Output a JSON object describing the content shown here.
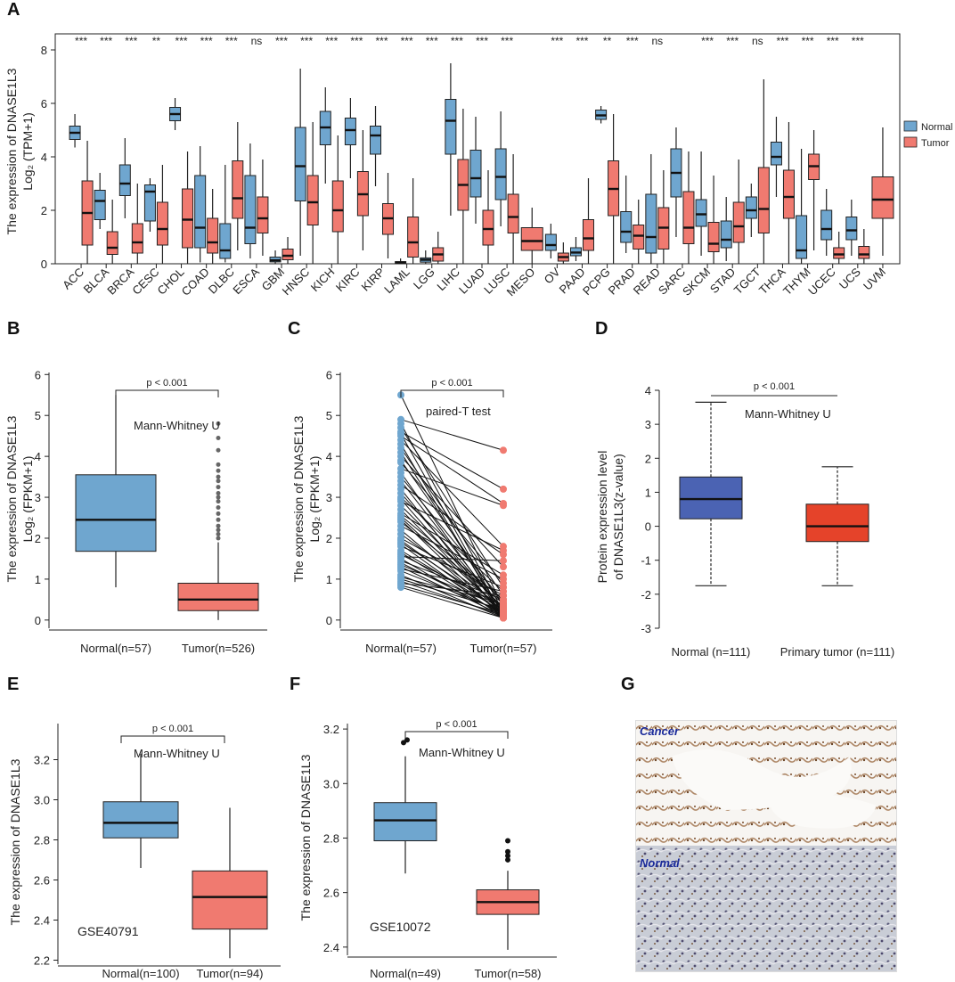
{
  "panel_labels": {
    "A": "A",
    "B": "B",
    "C": "C",
    "D": "D",
    "E": "E",
    "F": "F",
    "G": "G"
  },
  "colors": {
    "normal": "#6fa6cf",
    "tumor": "#f07a70",
    "cptac_normal": "#4b63b3",
    "cptac_tumor": "#e5432a",
    "ihc_label": "#1a2a9a"
  },
  "chart_data": [
    {
      "id": "A",
      "type": "box",
      "ylabel_line1": "The expression of DNASE1L3",
      "ylabel_line2": "Log₂ (TPM+1)",
      "ylim": [
        0,
        8.6
      ],
      "yticks": [
        0,
        2,
        4,
        6,
        8
      ],
      "legend": [
        "Normal",
        "Tumor"
      ],
      "categories": [
        "ACC",
        "BLCA",
        "BRCA",
        "CESC",
        "CHOL",
        "COAD",
        "DLBC",
        "ESCA",
        "GBM",
        "HNSC",
        "KICH",
        "KIRC",
        "KIRP",
        "LAML",
        "LGG",
        "LIHC",
        "LUAD",
        "LUSC",
        "MESO",
        "OV",
        "PAAD",
        "PCPG",
        "PRAD",
        "READ",
        "SARC",
        "SKCM",
        "STAD",
        "TGCT",
        "THCA",
        "THYM",
        "UCEC",
        "UCS",
        "UVM"
      ],
      "significance": [
        "***",
        "***",
        "***",
        "**",
        "***",
        "***",
        "***",
        "ns",
        "***",
        "***",
        "***",
        "***",
        "***",
        "***",
        "***",
        "***",
        "***",
        "***",
        "",
        "***",
        "***",
        "**",
        "***",
        "ns",
        "",
        "***",
        "***",
        "ns",
        "***",
        "***",
        "***",
        "***",
        ""
      ],
      "normal": [
        [
          4.35,
          4.65,
          4.9,
          5.15,
          5.6
        ],
        [
          1.3,
          1.65,
          2.35,
          2.75,
          3.4
        ],
        [
          1.7,
          2.55,
          3.0,
          3.7,
          4.7
        ],
        [
          1.2,
          1.6,
          2.7,
          2.95,
          3.2
        ],
        [
          5.0,
          5.35,
          5.6,
          5.85,
          6.2
        ],
        [
          0.05,
          0.6,
          1.35,
          3.3,
          4.4
        ],
        [
          0.05,
          0.2,
          0.5,
          1.5,
          3.7
        ],
        [
          0.2,
          0.75,
          1.35,
          3.3,
          4.5
        ],
        [
          0.0,
          0.07,
          0.13,
          0.25,
          0.5
        ],
        [
          0.3,
          2.35,
          3.65,
          5.1,
          7.3
        ],
        [
          3.0,
          4.45,
          5.1,
          5.7,
          6.6
        ],
        [
          3.2,
          4.45,
          5.0,
          5.45,
          6.2
        ],
        [
          2.9,
          4.1,
          4.8,
          5.15,
          5.9
        ],
        [
          0.0,
          0.02,
          0.05,
          0.08,
          0.2
        ],
        [
          0.0,
          0.06,
          0.15,
          0.22,
          0.5
        ],
        [
          1.8,
          4.1,
          5.35,
          6.15,
          7.5
        ],
        [
          1.5,
          2.5,
          3.2,
          4.25,
          5.5
        ],
        [
          1.4,
          2.4,
          3.25,
          4.3,
          5.7
        ],
        null,
        [
          0.2,
          0.5,
          0.7,
          1.1,
          1.5
        ],
        [
          0.1,
          0.3,
          0.42,
          0.6,
          1.0
        ],
        [
          5.25,
          5.4,
          5.55,
          5.75,
          5.9
        ],
        [
          0.4,
          0.8,
          1.2,
          1.95,
          3.3
        ],
        [
          0.0,
          0.4,
          1.0,
          2.6,
          4.1
        ],
        [
          1.0,
          2.5,
          3.4,
          4.3,
          5.1
        ],
        [
          0.3,
          1.4,
          1.85,
          2.4,
          4.2
        ],
        [
          0.1,
          0.6,
          0.9,
          1.6,
          2.5
        ],
        [
          1.0,
          1.7,
          2.0,
          2.5,
          3.0
        ],
        [
          2.5,
          3.7,
          4.0,
          4.55,
          5.5
        ],
        [
          0.0,
          0.2,
          0.5,
          1.8,
          4.3
        ],
        [
          0.3,
          0.9,
          1.3,
          2.0,
          2.8
        ],
        [
          0.3,
          0.9,
          1.25,
          1.75,
          2.4
        ],
        null
      ],
      "tumor": [
        [
          0.0,
          0.7,
          1.9,
          3.1,
          4.6
        ],
        [
          0.0,
          0.35,
          0.6,
          1.2,
          2.4
        ],
        [
          0.0,
          0.4,
          0.8,
          1.5,
          3.0
        ],
        [
          0.0,
          0.7,
          1.3,
          2.3,
          3.7
        ],
        [
          0.0,
          0.6,
          1.65,
          2.8,
          4.2
        ],
        [
          0.0,
          0.4,
          0.8,
          1.7,
          2.8
        ],
        [
          0.5,
          1.7,
          2.45,
          3.85,
          5.3
        ],
        [
          0.3,
          1.15,
          1.7,
          2.5,
          3.9
        ],
        [
          0.0,
          0.15,
          0.3,
          0.55,
          1.0
        ],
        [
          0.0,
          1.45,
          2.3,
          3.3,
          5.3
        ],
        [
          0.0,
          1.2,
          2.0,
          3.1,
          4.8
        ],
        [
          0.5,
          1.8,
          2.6,
          3.45,
          5.0
        ],
        [
          0.2,
          1.1,
          1.7,
          2.25,
          3.4
        ],
        [
          0.0,
          0.25,
          0.8,
          1.75,
          3.2
        ],
        [
          0.0,
          0.1,
          0.35,
          0.6,
          1.2
        ],
        [
          0.0,
          2.0,
          2.95,
          3.9,
          5.8
        ],
        [
          0.0,
          0.7,
          1.3,
          2.0,
          3.5
        ],
        [
          0.0,
          1.15,
          1.75,
          2.6,
          4.1
        ],
        [
          0.0,
          0.5,
          0.85,
          1.35,
          2.1
        ],
        [
          0.0,
          0.1,
          0.25,
          0.4,
          0.8
        ],
        [
          0.0,
          0.5,
          0.95,
          1.65,
          3.2
        ],
        [
          0.0,
          1.8,
          2.8,
          3.85,
          5.6
        ],
        [
          0.0,
          0.55,
          1.05,
          1.45,
          2.4
        ],
        [
          0.0,
          0.55,
          1.35,
          2.1,
          3.5
        ],
        [
          0.0,
          0.75,
          1.35,
          2.7,
          4.2
        ],
        [
          0.0,
          0.45,
          0.75,
          1.55,
          3.3
        ],
        [
          0.0,
          0.8,
          1.4,
          2.3,
          3.9
        ],
        [
          0.0,
          1.15,
          2.05,
          3.6,
          6.9
        ],
        [
          0.0,
          1.7,
          2.5,
          3.5,
          5.3
        ],
        [
          0.5,
          3.15,
          3.65,
          4.1,
          5.0
        ],
        [
          0.0,
          0.2,
          0.35,
          0.6,
          1.2
        ],
        [
          0.0,
          0.2,
          0.35,
          0.65,
          1.3
        ],
        [
          0.3,
          1.7,
          2.4,
          3.25,
          5.1
        ]
      ]
    },
    {
      "id": "B",
      "type": "box",
      "ylabel_line1": "The expression of DNASE1L3",
      "ylabel_line2": "Log₂ (FPKM+1)",
      "ylim": [
        -0.2,
        6.05
      ],
      "yticks": [
        0,
        1,
        2,
        3,
        4,
        5,
        6
      ],
      "categories": [
        "Normal(n=57)",
        "Tumor(n=526)"
      ],
      "p_text": "p < 0.001",
      "test": "Mann-Whitney U",
      "boxes": [
        [
          0.8,
          1.68,
          2.45,
          3.55,
          5.5
        ],
        [
          0.0,
          0.23,
          0.5,
          0.9,
          1.9
        ]
      ],
      "outliers_tumor": [
        2.0,
        2.1,
        2.2,
        2.3,
        2.45,
        2.6,
        2.75,
        2.9,
        3.0,
        3.1,
        3.25,
        3.4,
        3.5,
        3.65,
        3.8,
        4.15,
        4.45,
        4.8
      ]
    },
    {
      "id": "C",
      "type": "paired",
      "ylabel_line1": "The expression of DNASE1L3",
      "ylabel_line2": "Log₂ (FPKM+1)",
      "ylim": [
        -0.2,
        6.05
      ],
      "yticks": [
        0,
        1,
        2,
        3,
        4,
        5,
        6
      ],
      "categories": [
        "Normal(n=57)",
        "Tumor(n=57)"
      ],
      "p_text": "p < 0.001",
      "test": "paired-T test",
      "normal_values": [
        5.5,
        4.9,
        4.8,
        4.7,
        4.6,
        4.55,
        4.5,
        4.4,
        4.3,
        4.2,
        4.1,
        4.0,
        3.9,
        3.85,
        3.7,
        3.6,
        3.5,
        3.4,
        3.3,
        3.2,
        3.1,
        3.0,
        2.95,
        2.9,
        2.8,
        2.7,
        2.6,
        2.55,
        2.5,
        2.45,
        2.4,
        2.3,
        2.2,
        2.1,
        2.0,
        1.95,
        1.9,
        1.85,
        1.8,
        1.7,
        1.65,
        1.6,
        1.55,
        1.5,
        1.45,
        1.4,
        1.35,
        1.3,
        1.25,
        1.2,
        1.1,
        1.05,
        1.0,
        0.95,
        0.9,
        0.85,
        0.8
      ],
      "tumor_values": [
        0.3,
        4.15,
        0.2,
        0.8,
        3.2,
        0.1,
        2.85,
        1.8,
        0.05,
        0.6,
        0.15,
        1.3,
        0.35,
        0.9,
        2.8,
        0.1,
        0.45,
        0.2,
        1.6,
        0.05,
        0.25,
        0.7,
        0.1,
        1.7,
        0.3,
        0.15,
        1.1,
        0.5,
        0.2,
        0.05,
        0.4,
        1.0,
        0.1,
        0.3,
        0.6,
        0.15,
        0.25,
        0.05,
        0.8,
        0.2,
        0.1,
        0.35,
        1.45,
        0.05,
        0.5,
        0.15,
        0.3,
        0.1,
        0.7,
        0.2,
        0.05,
        0.4,
        0.25,
        0.1,
        0.6,
        0.15,
        0.05
      ]
    },
    {
      "id": "D",
      "type": "box",
      "ylabel_line1": "Protein expression level",
      "ylabel_line2": "of DNASE1L3(z-value)",
      "ylim": [
        -3,
        4
      ],
      "yticks": [
        -3,
        -2,
        -1,
        0,
        1,
        2,
        3,
        4
      ],
      "categories": [
        "Normal (n=111)",
        "Primary tumor (n=111)"
      ],
      "p_text": "p < 0.001",
      "test": "Mann-Whitney U",
      "boxes": [
        [
          -1.75,
          0.22,
          0.8,
          1.45,
          3.65
        ],
        [
          -1.75,
          -0.45,
          0.0,
          0.65,
          1.75
        ]
      ]
    },
    {
      "id": "E",
      "type": "box",
      "ylabel": "The expression of DNASE1L3",
      "ylim": [
        2.18,
        3.38
      ],
      "yticks": [
        2.2,
        2.4,
        2.6,
        2.8,
        3.0,
        3.2
      ],
      "categories": [
        "Normal(n=100)",
        "Tumor(n=94)"
      ],
      "p_text": "p < 0.001",
      "test": "Mann-Whitney U",
      "dataset": "GSE40791",
      "boxes": [
        [
          2.66,
          2.81,
          2.885,
          2.99,
          3.23
        ],
        [
          2.21,
          2.355,
          2.515,
          2.645,
          2.96
        ]
      ]
    },
    {
      "id": "F",
      "type": "box",
      "ylabel": "The expression of DNASE1L3",
      "ylim": [
        2.37,
        3.22
      ],
      "yticks": [
        2.4,
        2.6,
        2.8,
        3.0,
        3.2
      ],
      "categories": [
        "Normal(n=49)",
        "Tumor(n=58)"
      ],
      "p_text": "p < 0.001",
      "test": "Mann-Whitney U",
      "dataset": "GSE10072",
      "boxes": [
        [
          2.67,
          2.79,
          2.865,
          2.93,
          3.1
        ],
        [
          2.39,
          2.52,
          2.565,
          2.61,
          2.68
        ]
      ],
      "outliers_normal": [
        3.15,
        3.16
      ],
      "outliers_tumor": [
        2.72,
        2.735,
        2.75,
        2.79
      ]
    }
  ],
  "ihc": {
    "cancer_label": "Cancer",
    "normal_label": "Normal"
  }
}
